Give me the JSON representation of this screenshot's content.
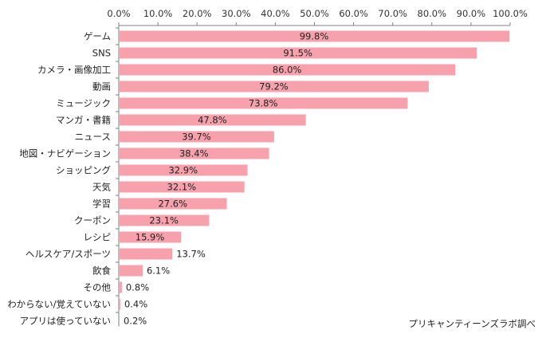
{
  "chart_data": {
    "type": "bar",
    "orientation": "horizontal",
    "categories": [
      "ゲーム",
      "SNS",
      "カメラ・画像加工",
      "動画",
      "ミュージック",
      "マンガ・書籍",
      "ニュース",
      "地図・ナビゲーション",
      "ショッピング",
      "天気",
      "学習",
      "クーポン",
      "レシピ",
      "ヘルスケア/スポーツ",
      "飲食",
      "その他",
      "わからない/覚えていない",
      "アプリは使っていない"
    ],
    "values": [
      99.8,
      91.5,
      86.0,
      79.2,
      73.8,
      47.8,
      39.7,
      38.4,
      32.9,
      32.1,
      27.6,
      23.1,
      15.9,
      13.7,
      6.1,
      0.8,
      0.4,
      0.2
    ],
    "value_labels": [
      "99.8%",
      "91.5%",
      "86.0%",
      "79.2%",
      "73.8%",
      "47.8%",
      "39.7%",
      "38.4%",
      "32.9%",
      "32.1%",
      "27.6%",
      "23.1%",
      "15.9%",
      "13.7%",
      "6.1%",
      "0.8%",
      "0.4%",
      "0.2%"
    ],
    "tick_labels": [
      "0.0%",
      "10.0%",
      "20.0%",
      "30.0%",
      "40.0%",
      "50.0%",
      "60.0%",
      "70.0%",
      "80.0%",
      "90.0%",
      "100.0%"
    ],
    "xlim": [
      0,
      100
    ],
    "axis_position": "top",
    "bar_color": "#f7a1ac",
    "grid": false,
    "source_note": "プリキャンティーンズラボ調べ"
  }
}
